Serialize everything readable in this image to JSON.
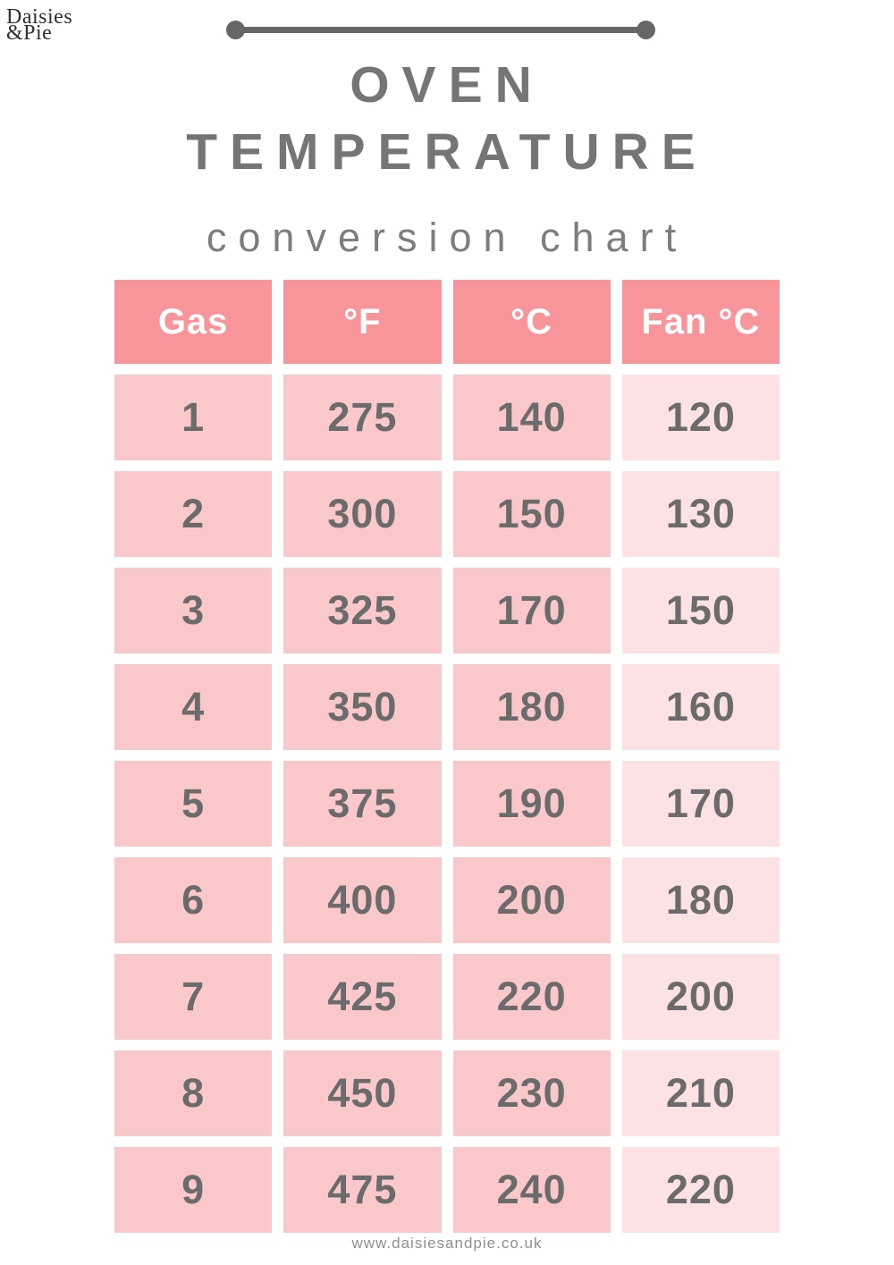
{
  "page": {
    "logo_line1": "Daisies",
    "logo_line2": "&Pie",
    "title_line1": "OVEN",
    "title_line2": "TEMPERATURE",
    "subtitle": "conversion chart",
    "footer_url": "www.daisiesandpie.co.uk"
  },
  "colors": {
    "header_bg": "#f8959b",
    "row_bg": "#fac8cb",
    "fan_bg": "#fde2e4",
    "cell_text": "#6b6b6b",
    "title_gray": "#757575",
    "subtitle_gray": "#7d7d7d",
    "rule_gray": "#666666",
    "footer_gray": "#8f8f8f",
    "logo_color": "#2e2e2e"
  },
  "chart_data": {
    "type": "table",
    "title": "OVEN TEMPERATURE conversion chart",
    "columns": [
      "Gas",
      "°F",
      "°C",
      "Fan °C"
    ],
    "rows": [
      [
        1,
        275,
        140,
        120
      ],
      [
        2,
        300,
        150,
        130
      ],
      [
        3,
        325,
        170,
        150
      ],
      [
        4,
        350,
        180,
        160
      ],
      [
        5,
        375,
        190,
        170
      ],
      [
        6,
        400,
        200,
        180
      ],
      [
        7,
        425,
        220,
        200
      ],
      [
        8,
        450,
        230,
        210
      ],
      [
        9,
        475,
        240,
        220
      ]
    ],
    "layout": {
      "header_style": "coral background, white bold text",
      "body_style": "first three columns medium pink, fan column lightest pink, gray bold numbers",
      "grid": "separate cells with white gaps"
    }
  }
}
